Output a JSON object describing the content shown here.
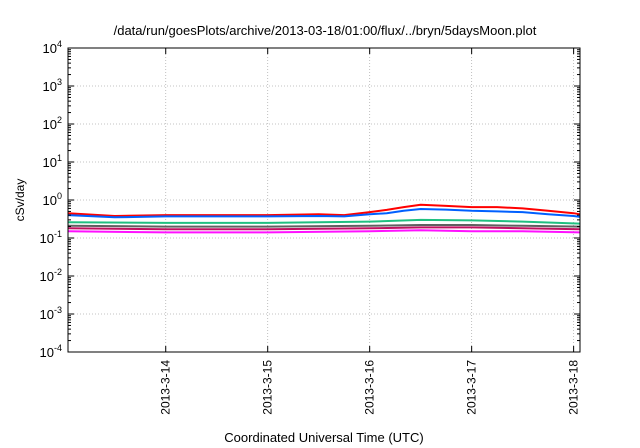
{
  "chart_data": {
    "type": "line",
    "title": "/data/run/goesPlots/archive/2013-03-18/01:00/flux/../bryn/5daysMoon.plot",
    "xlabel": "Coordinated Universal Time (UTC)",
    "ylabel": "cSv/day",
    "x_scale": "time",
    "xlim": [
      "2013-03-13T01:00",
      "2013-03-18T01:30"
    ],
    "x_ticks": [
      "2013-3-14",
      "2013-3-15",
      "2013-3-16",
      "2013-3-17",
      "2013-3-18"
    ],
    "y_scale": "log",
    "ylim": [
      0.0001,
      10000
    ],
    "y_ticks": [
      {
        "value": 0.0001,
        "mantissa": "10",
        "exp": "-4"
      },
      {
        "value": 0.001,
        "mantissa": "10",
        "exp": "-3"
      },
      {
        "value": 0.01,
        "mantissa": "10",
        "exp": "-2"
      },
      {
        "value": 0.1,
        "mantissa": "10",
        "exp": "-1"
      },
      {
        "value": 1,
        "mantissa": "10",
        "exp": "0"
      },
      {
        "value": 10,
        "mantissa": "10",
        "exp": "1"
      },
      {
        "value": 100,
        "mantissa": "10",
        "exp": "2"
      },
      {
        "value": 1000,
        "mantissa": "10",
        "exp": "3"
      },
      {
        "value": 10000,
        "mantissa": "10",
        "exp": "4"
      }
    ],
    "grid": true,
    "series": [
      {
        "color": "#ff0000",
        "x": [
          "2013-03-13T01:00",
          "2013-03-13T12:00",
          "2013-03-14T00:00",
          "2013-03-14T12:00",
          "2013-03-15T00:00",
          "2013-03-15T12:00",
          "2013-03-15T18:00",
          "2013-03-16T00:00",
          "2013-03-16T04:00",
          "2013-03-16T08:00",
          "2013-03-16T12:00",
          "2013-03-16T18:00",
          "2013-03-17T00:00",
          "2013-03-17T06:00",
          "2013-03-17T12:00",
          "2013-03-17T18:00",
          "2013-03-18T00:00",
          "2013-03-18T01:30"
        ],
        "y": [
          0.45,
          0.38,
          0.4,
          0.4,
          0.4,
          0.42,
          0.4,
          0.48,
          0.55,
          0.65,
          0.75,
          0.7,
          0.65,
          0.65,
          0.6,
          0.52,
          0.45,
          0.42
        ]
      },
      {
        "color": "#0060ff",
        "x": [
          "2013-03-13T01:00",
          "2013-03-13T12:00",
          "2013-03-14T00:00",
          "2013-03-14T12:00",
          "2013-03-15T00:00",
          "2013-03-15T12:00",
          "2013-03-15T18:00",
          "2013-03-16T00:00",
          "2013-03-16T04:00",
          "2013-03-16T08:00",
          "2013-03-16T12:00",
          "2013-03-16T18:00",
          "2013-03-17T00:00",
          "2013-03-17T06:00",
          "2013-03-17T12:00",
          "2013-03-17T18:00",
          "2013-03-18T00:00",
          "2013-03-18T01:30"
        ],
        "y": [
          0.4,
          0.35,
          0.37,
          0.37,
          0.37,
          0.38,
          0.37,
          0.42,
          0.45,
          0.52,
          0.58,
          0.56,
          0.52,
          0.5,
          0.48,
          0.42,
          0.38,
          0.36
        ]
      },
      {
        "color": "#20c080",
        "x": [
          "2013-03-13T01:00",
          "2013-03-14T00:00",
          "2013-03-15T00:00",
          "2013-03-16T00:00",
          "2013-03-16T12:00",
          "2013-03-17T00:00",
          "2013-03-17T12:00",
          "2013-03-18T01:30"
        ],
        "y": [
          0.26,
          0.25,
          0.25,
          0.27,
          0.3,
          0.29,
          0.27,
          0.24
        ]
      },
      {
        "color": "#606060",
        "x": [
          "2013-03-13T01:00",
          "2013-03-14T00:00",
          "2013-03-15T00:00",
          "2013-03-16T00:00",
          "2013-03-16T12:00",
          "2013-03-17T00:00",
          "2013-03-17T12:00",
          "2013-03-18T01:30"
        ],
        "y": [
          0.21,
          0.2,
          0.2,
          0.21,
          0.22,
          0.22,
          0.21,
          0.2
        ]
      },
      {
        "color": "#c01060",
        "x": [
          "2013-03-13T01:00",
          "2013-03-14T00:00",
          "2013-03-15T00:00",
          "2013-03-16T00:00",
          "2013-03-16T12:00",
          "2013-03-17T00:00",
          "2013-03-17T12:00",
          "2013-03-18T01:30"
        ],
        "y": [
          0.18,
          0.17,
          0.17,
          0.18,
          0.19,
          0.19,
          0.18,
          0.17
        ]
      },
      {
        "color": "#ff10ff",
        "x": [
          "2013-03-13T01:00",
          "2013-03-14T00:00",
          "2013-03-15T00:00",
          "2013-03-16T00:00",
          "2013-03-16T12:00",
          "2013-03-17T00:00",
          "2013-03-17T12:00",
          "2013-03-18T01:30"
        ],
        "y": [
          0.15,
          0.14,
          0.14,
          0.15,
          0.16,
          0.15,
          0.15,
          0.14
        ]
      }
    ]
  }
}
